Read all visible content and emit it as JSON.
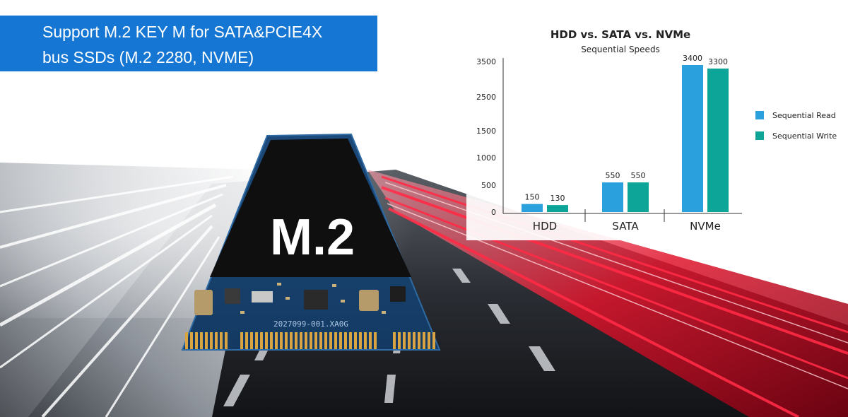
{
  "banner": {
    "line1": "Support M.2 KEY M for SATA&PCIE4X",
    "line2": "bus SSDs (M.2 2280, NVME)",
    "color": "#1577d3"
  },
  "product": {
    "label": "M.2",
    "serial": "2027099-001.XA0G"
  },
  "chart_data": {
    "type": "bar",
    "title": "HDD vs. SATA vs. NVMe",
    "subtitle": "Sequential Speeds",
    "categories": [
      "HDD",
      "SATA",
      "NVMe"
    ],
    "series": [
      {
        "name": "Sequential Read",
        "values": [
          150,
          550,
          3400
        ],
        "color": "#2aa1dc"
      },
      {
        "name": "Sequential Write",
        "values": [
          130,
          550,
          3300
        ],
        "color": "#0ca598"
      }
    ],
    "yticks": [
      "0",
      "500",
      "1000",
      "1500",
      "2500",
      "3500"
    ],
    "legend_position": "right",
    "grid": false
  }
}
